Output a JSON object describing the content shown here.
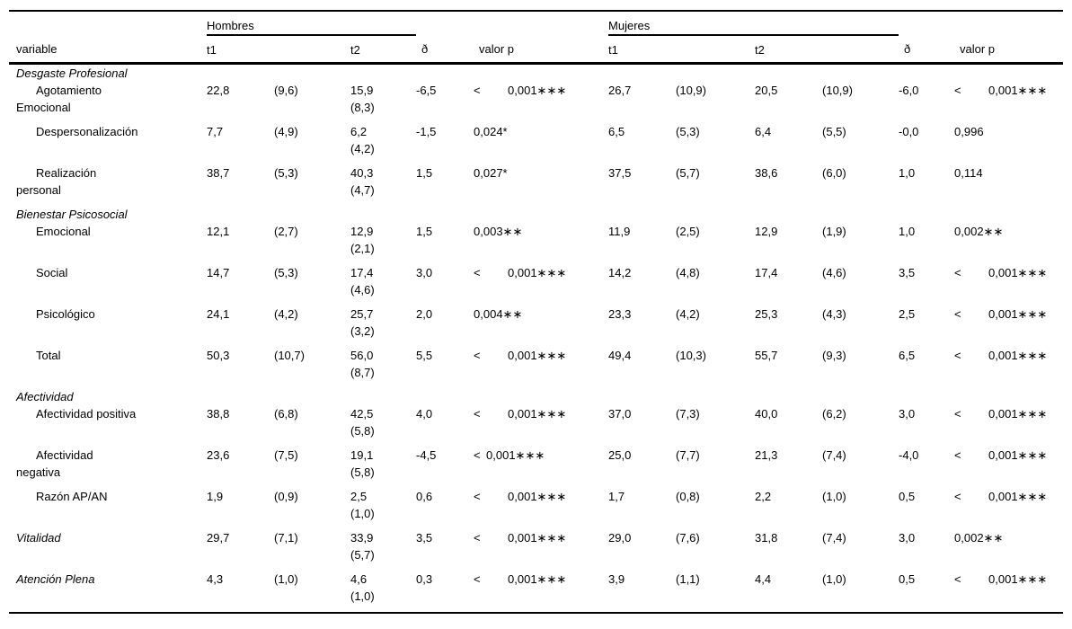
{
  "table": {
    "header": {
      "variable": "variable",
      "group_hombres": "Hombres",
      "group_mujeres": "Mujeres",
      "t1": "t1",
      "t2": "t2",
      "delta": "ð",
      "p": "valor p"
    },
    "rows": [
      {
        "type": "section",
        "label": "Desgaste Profesional"
      },
      {
        "type": "data",
        "indent": true,
        "italic": false,
        "label_lines": [
          "Agotamiento",
          "Emocional"
        ],
        "h": {
          "t1": "22,8",
          "t1sd": "(9,6)",
          "t2": "15,9",
          "t2sd": "(8,3)",
          "d": "-6,5",
          "p_op": "<",
          "p": "0,001∗∗∗"
        },
        "m": {
          "t1": "26,7",
          "t1sd": "(10,9)",
          "t2": "20,5",
          "t2sd": "(10,9)",
          "d": "-6,0",
          "p_op": "<",
          "p": "0,001∗∗∗"
        }
      },
      {
        "type": "data",
        "indent": true,
        "italic": false,
        "label_lines": [
          "Despersonalización"
        ],
        "h": {
          "t1": "7,7",
          "t1sd": "(4,9)",
          "t2": "6,2",
          "t2sd": "(4,2)",
          "d": "-1,5",
          "p_op": "",
          "p": "0,024*"
        },
        "m": {
          "t1": "6,5",
          "t1sd": "(5,3)",
          "t2": "6,4",
          "t2sd": "(5,5)",
          "d": "-0,0",
          "p_op": "",
          "p": "0,996"
        }
      },
      {
        "type": "data",
        "indent": true,
        "italic": false,
        "label_lines": [
          "Realización",
          "personal"
        ],
        "h": {
          "t1": "38,7",
          "t1sd": "(5,3)",
          "t2": "40,3",
          "t2sd": "(4,7)",
          "d": "1,5",
          "p_op": "",
          "p": "0,027*"
        },
        "m": {
          "t1": "37,5",
          "t1sd": "(5,7)",
          "t2": "38,6",
          "t2sd": "(6,0)",
          "d": "1,0",
          "p_op": "",
          "p": "0,114"
        }
      },
      {
        "type": "section",
        "label": "Bienestar Psicosocial"
      },
      {
        "type": "data",
        "indent": true,
        "italic": false,
        "label_lines": [
          "Emocional"
        ],
        "h": {
          "t1": "12,1",
          "t1sd": "(2,7)",
          "t2": "12,9",
          "t2sd": "(2,1)",
          "d": "1,5",
          "p_op": "",
          "p": "0,003∗∗"
        },
        "m": {
          "t1": "11,9",
          "t1sd": "(2,5)",
          "t2": "12,9",
          "t2sd": "(1,9)",
          "d": "1,0",
          "p_op": "",
          "p": "0,002∗∗"
        }
      },
      {
        "type": "data",
        "indent": true,
        "italic": false,
        "label_lines": [
          "Social"
        ],
        "h": {
          "t1": "14,7",
          "t1sd": "(5,3)",
          "t2": "17,4",
          "t2sd": "(4,6)",
          "d": "3,0",
          "p_op": "<",
          "p": "0,001∗∗∗"
        },
        "m": {
          "t1": "14,2",
          "t1sd": "(4,8)",
          "t2": "17,4",
          "t2sd": "(4,6)",
          "d": "3,5",
          "p_op": "<",
          "p": "0,001∗∗∗"
        }
      },
      {
        "type": "data",
        "indent": true,
        "italic": false,
        "label_lines": [
          "Psicológico"
        ],
        "h": {
          "t1": "24,1",
          "t1sd": "(4,2)",
          "t2": "25,7",
          "t2sd": "(3,2)",
          "d": "2,0",
          "p_op": "",
          "p": "0,004∗∗"
        },
        "m": {
          "t1": "23,3",
          "t1sd": "(4,2)",
          "t2": "25,3",
          "t2sd": "(4,3)",
          "d": "2,5",
          "p_op": "<",
          "p": "0,001∗∗∗"
        }
      },
      {
        "type": "data",
        "indent": true,
        "italic": false,
        "label_lines": [
          "Total"
        ],
        "h": {
          "t1": "50,3",
          "t1sd": "(10,7)",
          "t2": "56,0",
          "t2sd": "(8,7)",
          "d": "5,5",
          "p_op": "<",
          "p": "0,001∗∗∗"
        },
        "m": {
          "t1": "49,4",
          "t1sd": "(10,3)",
          "t2": "55,7",
          "t2sd": "(9,3)",
          "d": "6,5",
          "p_op": "<",
          "p": "0,001∗∗∗"
        }
      },
      {
        "type": "section",
        "label": "Afectividad"
      },
      {
        "type": "data",
        "indent": true,
        "italic": false,
        "label_lines": [
          "Afectividad positiva"
        ],
        "h": {
          "t1": "38,8",
          "t1sd": "(6,8)",
          "t2": "42,5",
          "t2sd": "(5,8)",
          "d": "4,0",
          "p_op": "<",
          "p": "0,001∗∗∗"
        },
        "m": {
          "t1": "37,0",
          "t1sd": "(7,3)",
          "t2": "40,0",
          "t2sd": "(6,2)",
          "d": "3,0",
          "p_op": "<",
          "p": "0,001∗∗∗"
        }
      },
      {
        "type": "data",
        "indent": true,
        "italic": false,
        "label_lines": [
          "Afectividad",
          "negativa"
        ],
        "h": {
          "t1": "23,6",
          "t1sd": "(7,5)",
          "t2": "19,1",
          "t2sd": "(5,8)",
          "d": "-4,5",
          "p_op": "<",
          "p": "0,001∗∗∗",
          "p_tight": true
        },
        "m": {
          "t1": "25,0",
          "t1sd": "(7,7)",
          "t2": "21,3",
          "t2sd": "(7,4)",
          "d": "-4,0",
          "p_op": "<",
          "p": "0,001∗∗∗"
        }
      },
      {
        "type": "data",
        "indent": true,
        "italic": false,
        "label_lines": [
          "Razón AP/AN"
        ],
        "h": {
          "t1": "1,9",
          "t1sd": "(0,9)",
          "t2": "2,5",
          "t2sd": "(1,0)",
          "d": "0,6",
          "p_op": "<",
          "p": "0,001∗∗∗"
        },
        "m": {
          "t1": "1,7",
          "t1sd": "(0,8)",
          "t2": "2,2",
          "t2sd": "(1,0)",
          "d": "0,5",
          "p_op": "<",
          "p": "0,001∗∗∗"
        }
      },
      {
        "type": "data",
        "indent": false,
        "italic": true,
        "label_lines": [
          "Vitalidad"
        ],
        "h": {
          "t1": "29,7",
          "t1sd": "(7,1)",
          "t2": "33,9",
          "t2sd": "(5,7)",
          "d": "3,5",
          "p_op": "<",
          "p": "0,001∗∗∗"
        },
        "m": {
          "t1": "29,0",
          "t1sd": "(7,6)",
          "t2": "31,8",
          "t2sd": "(7,4)",
          "d": "3,0",
          "p_op": "",
          "p": "0,002∗∗"
        }
      },
      {
        "type": "data",
        "indent": false,
        "italic": true,
        "label_lines": [
          "Atención Plena"
        ],
        "h": {
          "t1": "4,3",
          "t1sd": "(1,0)",
          "t2": "4,6",
          "t2sd": "(1,0)",
          "d": "0,3",
          "p_op": "<",
          "p": "0,001∗∗∗"
        },
        "m": {
          "t1": "3,9",
          "t1sd": "(1,1)",
          "t2": "4,4",
          "t2sd": "(1,0)",
          "d": "0,5",
          "p_op": "<",
          "p": "0,001∗∗∗"
        }
      }
    ]
  }
}
